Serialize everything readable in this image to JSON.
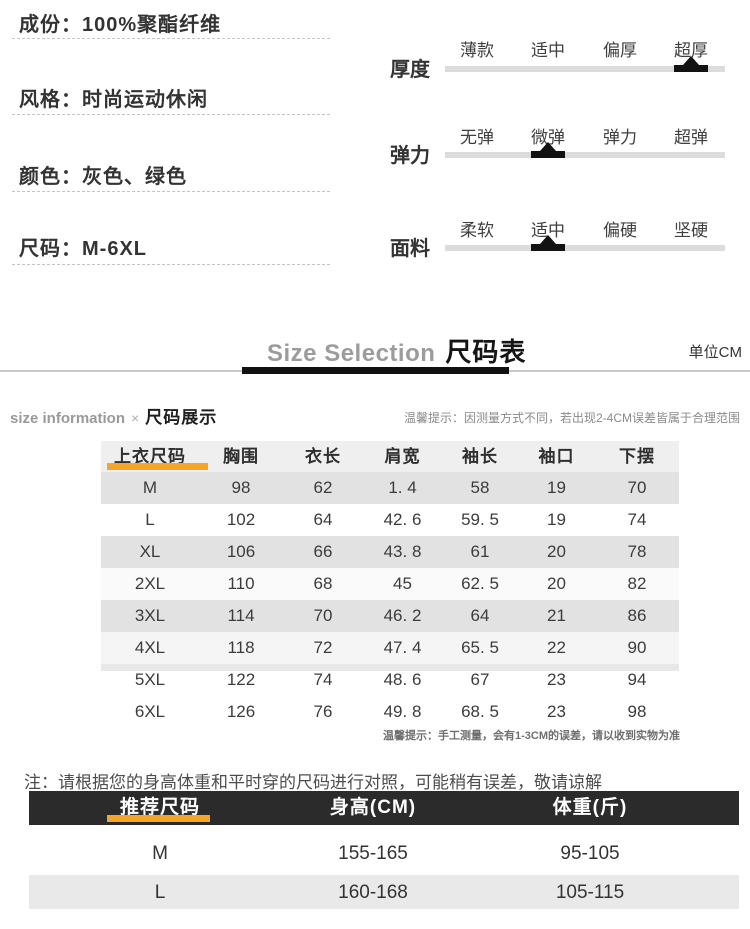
{
  "attrs": {
    "items": [
      "成份：100%聚酯纤维",
      "风格：时尚运动休闲",
      "颜色：灰色、绿色",
      "尺码：M-6XL"
    ]
  },
  "scales": {
    "rows": [
      {
        "name": "thickness",
        "label": "厚度",
        "options": [
          "薄款",
          "适中",
          "偏厚",
          "超厚"
        ],
        "selected_index": 3
      },
      {
        "name": "elasticity",
        "label": "弹力",
        "options": [
          "无弹",
          "微弹",
          "弹力",
          "超弹"
        ],
        "selected_index": 1
      },
      {
        "name": "fabric",
        "label": "面料",
        "options": [
          "柔软",
          "适中",
          "偏硬",
          "坚硬"
        ],
        "selected_index": 1
      }
    ]
  },
  "title": {
    "en": "Size Selection",
    "zh": "尺码表",
    "unit": "单位CM"
  },
  "size_info": {
    "en": "size information",
    "sep": "×",
    "zh": "尺码展示",
    "tip": "温馨提示：因测量方式不同，若出现2-4CM误差皆属于合理范围"
  },
  "size_table": {
    "headers": [
      "上衣尺码",
      "胸围",
      "衣长",
      "肩宽",
      "袖长",
      "袖口",
      "下摆"
    ],
    "rows": [
      [
        "M",
        "98",
        "62",
        "1. 4",
        "58",
        "19",
        "70"
      ],
      [
        "L",
        "102",
        "64",
        "42. 6",
        "59. 5",
        "19",
        "74"
      ],
      [
        "XL",
        "106",
        "66",
        "43. 8",
        "61",
        "20",
        "78"
      ],
      [
        "2XL",
        "110",
        "68",
        "45",
        "62. 5",
        "20",
        "82"
      ],
      [
        "3XL",
        "114",
        "70",
        "46. 2",
        "64",
        "21",
        "86"
      ],
      [
        "4XL",
        "118",
        "72",
        "47. 4",
        "65. 5",
        "22",
        "90"
      ],
      [
        "5XL",
        "122",
        "74",
        "48. 6",
        "67",
        "23",
        "94"
      ],
      [
        "6XL",
        "126",
        "76",
        "49. 8",
        "68. 5",
        "23",
        "98"
      ]
    ],
    "footnote": "温馨提示：手工测量，会有1-3CM的误差，请以收到实物为准"
  },
  "note": "注：请根据您的身高体重和平时穿的尺码进行对照，可能稍有误差，敬请谅解",
  "recommend_table": {
    "headers": [
      "推荐尺码",
      "身高(CM)",
      "体重(斤)"
    ],
    "rows": [
      [
        "M",
        "155-165",
        "95-105"
      ],
      [
        "L",
        "160-168",
        "105-115"
      ]
    ]
  },
  "colors": {
    "accent_orange": "#f5a42c",
    "dark_header_bar": "#2b2b2b",
    "stripe_gray": "#e2e2e2",
    "track_gray": "#dcdcdc",
    "marker_black": "#121212"
  }
}
